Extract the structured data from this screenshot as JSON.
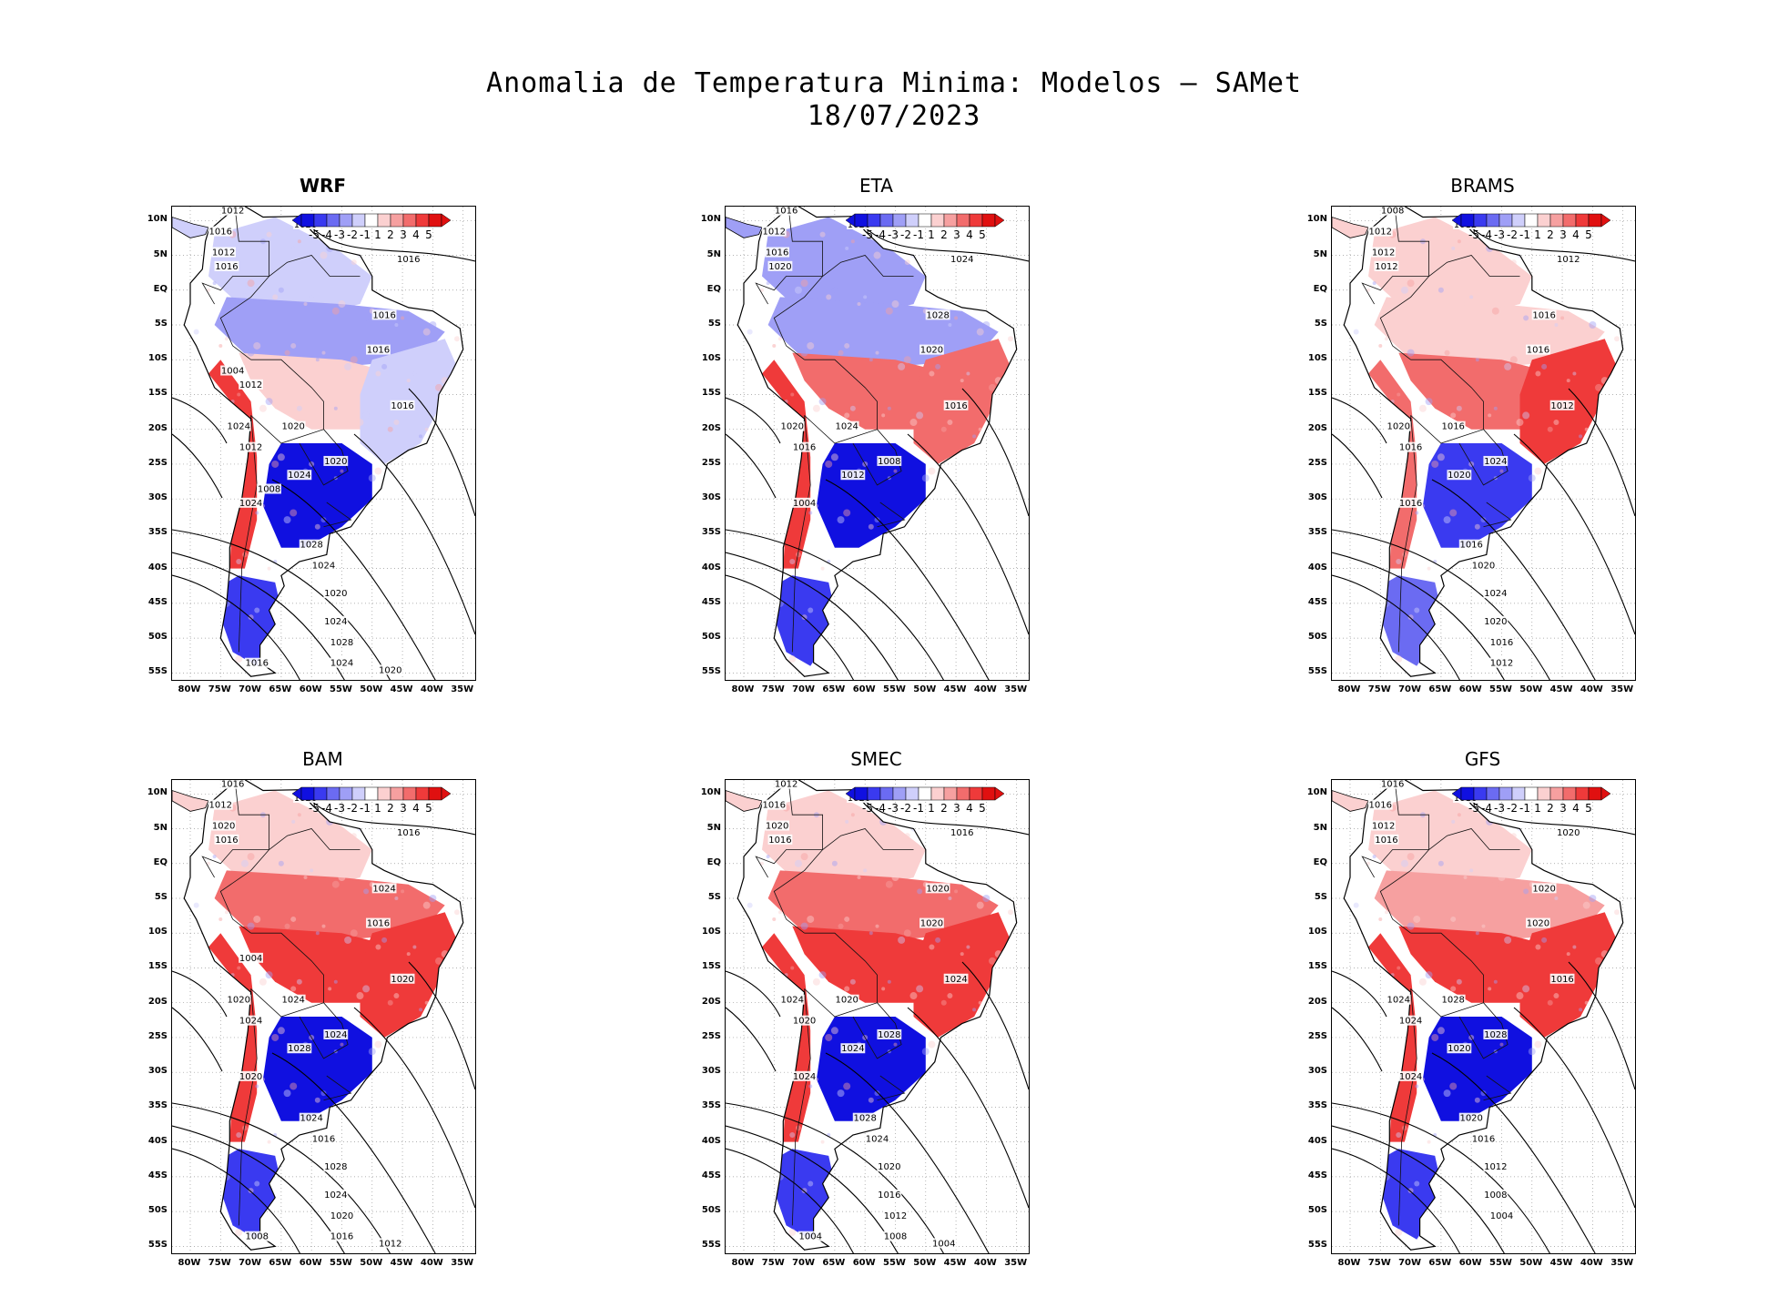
{
  "figure": {
    "title_line1": "Anomalia de Temperatura Minima: Modelos — SAMet",
    "title_line2": "18/07/2023"
  },
  "colors": {
    "neg5": "#1010e0",
    "neg4": "#3a3af0",
    "neg3": "#6b6bf2",
    "neg2": "#9f9ff6",
    "neg1": "#cfcffb",
    "neutral": "#ffffff",
    "pos1": "#fbd0d0",
    "pos2": "#f6a0a0",
    "pos3": "#f26c6c",
    "pos4": "#ef3a3a",
    "pos5": "#e01010"
  },
  "colorbar": {
    "labels": [
      "-5",
      "-4",
      "-3",
      "-2",
      "-1",
      "1",
      "2",
      "3",
      "4",
      "5"
    ]
  },
  "axes": {
    "lat_ticks": [
      "10N",
      "5N",
      "EQ",
      "5S",
      "10S",
      "15S",
      "20S",
      "25S",
      "30S",
      "35S",
      "40S",
      "45S",
      "50S",
      "55S"
    ],
    "lon_ticks": [
      "80W",
      "75W",
      "70W",
      "65W",
      "60W",
      "55W",
      "50W",
      "45W",
      "40W",
      "35W"
    ],
    "lat_range": [
      12,
      -56
    ],
    "lon_range": [
      -83,
      -33
    ]
  },
  "panels": [
    {
      "name": "WRF",
      "bold": true,
      "isobars": [
        "1012",
        "1016",
        "1012",
        "1016",
        "1020",
        "1016",
        "1016",
        "1016",
        "1016",
        "1020",
        "1024",
        "1012",
        "1024",
        "1020",
        "1024",
        "1028",
        "1024",
        "1020",
        "1024",
        "1028",
        "1024",
        "1020",
        "1016",
        "1012",
        "1008",
        "1004"
      ],
      "anomaly": {
        "north": -1,
        "amazon": -2,
        "central": 1,
        "southeast": -1,
        "andes": 4,
        "south": -5,
        "patagonia": -4
      }
    },
    {
      "name": "ETA",
      "bold": false,
      "isobars": [
        "1016",
        "1012",
        "1016",
        "1020",
        "1020",
        "1024",
        "1028",
        "1020",
        "1016",
        "1024",
        "1020",
        "1016",
        "1012",
        "1008",
        "1004"
      ],
      "anomaly": {
        "north": -2,
        "amazon": -2,
        "central": 3,
        "southeast": 3,
        "andes": 4,
        "south": -5,
        "patagonia": -4
      }
    },
    {
      "name": "BRAMS",
      "bold": false,
      "isobars": [
        "1008",
        "1012",
        "1012",
        "1012",
        "1012",
        "1012",
        "1016",
        "1016",
        "1012",
        "1016",
        "1020",
        "1016",
        "1020",
        "1024",
        "1016",
        "1016",
        "1020",
        "1024",
        "1020",
        "1016",
        "1012"
      ],
      "anomaly": {
        "north": 1,
        "amazon": 1,
        "central": 3,
        "southeast": 4,
        "andes": 3,
        "south": -4,
        "patagonia": -3
      }
    },
    {
      "name": "BAM",
      "bold": false,
      "isobars": [
        "1016",
        "1012",
        "1020",
        "1016",
        "1020",
        "1016",
        "1024",
        "1016",
        "1020",
        "1024",
        "1020",
        "1024",
        "1028",
        "1024",
        "1020",
        "1024",
        "1016",
        "1028",
        "1024",
        "1020",
        "1016",
        "1012",
        "1008",
        "1004"
      ],
      "anomaly": {
        "north": 1,
        "amazon": 3,
        "central": 4,
        "southeast": 4,
        "andes": 4,
        "south": -5,
        "patagonia": -4
      }
    },
    {
      "name": "SMEC",
      "bold": false,
      "isobars": [
        "1012",
        "1016",
        "1020",
        "1016",
        "1020",
        "1016",
        "1020",
        "1020",
        "1024",
        "1020",
        "1024",
        "1020",
        "1024",
        "1028",
        "1024",
        "1028",
        "1024",
        "1020",
        "1016",
        "1012",
        "1008",
        "1004",
        "1004"
      ],
      "anomaly": {
        "north": 1,
        "amazon": 3,
        "central": 4,
        "southeast": 4,
        "andes": 4,
        "south": -5,
        "patagonia": -4
      }
    },
    {
      "name": "GFS",
      "bold": false,
      "isobars": [
        "1016",
        "1016",
        "1012",
        "1016",
        "1016",
        "1020",
        "1020",
        "1020",
        "1016",
        "1028",
        "1024",
        "1024",
        "1020",
        "1028",
        "1024",
        "1020",
        "1016",
        "1012",
        "1008",
        "1004"
      ],
      "anomaly": {
        "north": 1,
        "amazon": 2,
        "central": 4,
        "southeast": 4,
        "andes": 4,
        "south": -5,
        "patagonia": -4
      }
    }
  ]
}
